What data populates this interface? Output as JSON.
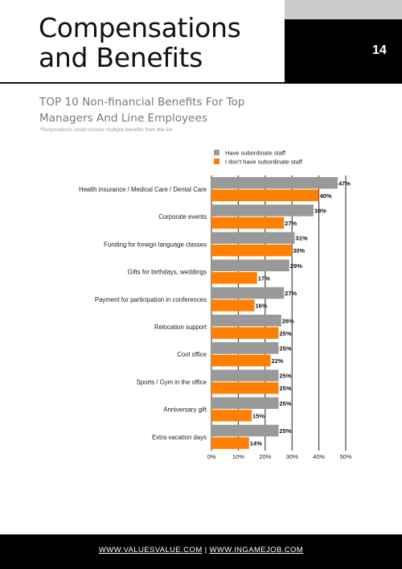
{
  "header": {
    "title_line1": "Compensations",
    "title_line2": "and Benefits",
    "page_number": "14"
  },
  "section": {
    "subtitle_line1": "TOP 10 Non-financial Benefits For Top",
    "subtitle_line2": "Managers And Line Employees",
    "note": "*Respondents could choose multiple benefits from the list"
  },
  "chart_data": {
    "type": "bar",
    "orientation": "horizontal",
    "categories": [
      "Health insurance / Medical Care / Dental Care",
      "Corporate events",
      "Funding for foreign language classes",
      "Gifts for birthdays, weddings",
      "Payment for participation in conferences",
      "Relocation support",
      "Cool office",
      "Sports / Gym in the office",
      "Anniversary gift",
      "Extra vacation days"
    ],
    "series": [
      {
        "name": "Have subordinate staff",
        "color": "#999999",
        "values": [
          47,
          38,
          31,
          29,
          27,
          26,
          25,
          25,
          25,
          25
        ]
      },
      {
        "name": "I don't have subordinate staff",
        "color": "#ff8000",
        "values": [
          40,
          27,
          30,
          17,
          16,
          25,
          22,
          25,
          15,
          14
        ]
      }
    ],
    "value_suffix": "%",
    "xlim": [
      0,
      50
    ],
    "xticks": [
      "0%",
      "10%",
      "20%",
      "30%",
      "40%",
      "50%"
    ],
    "legend_position": "top-right",
    "grid": true
  },
  "footer": {
    "link1": "WWW.VALUESVALUE.COM",
    "separator": "|",
    "link2": "WWW.INGAMEJOB.COM"
  }
}
